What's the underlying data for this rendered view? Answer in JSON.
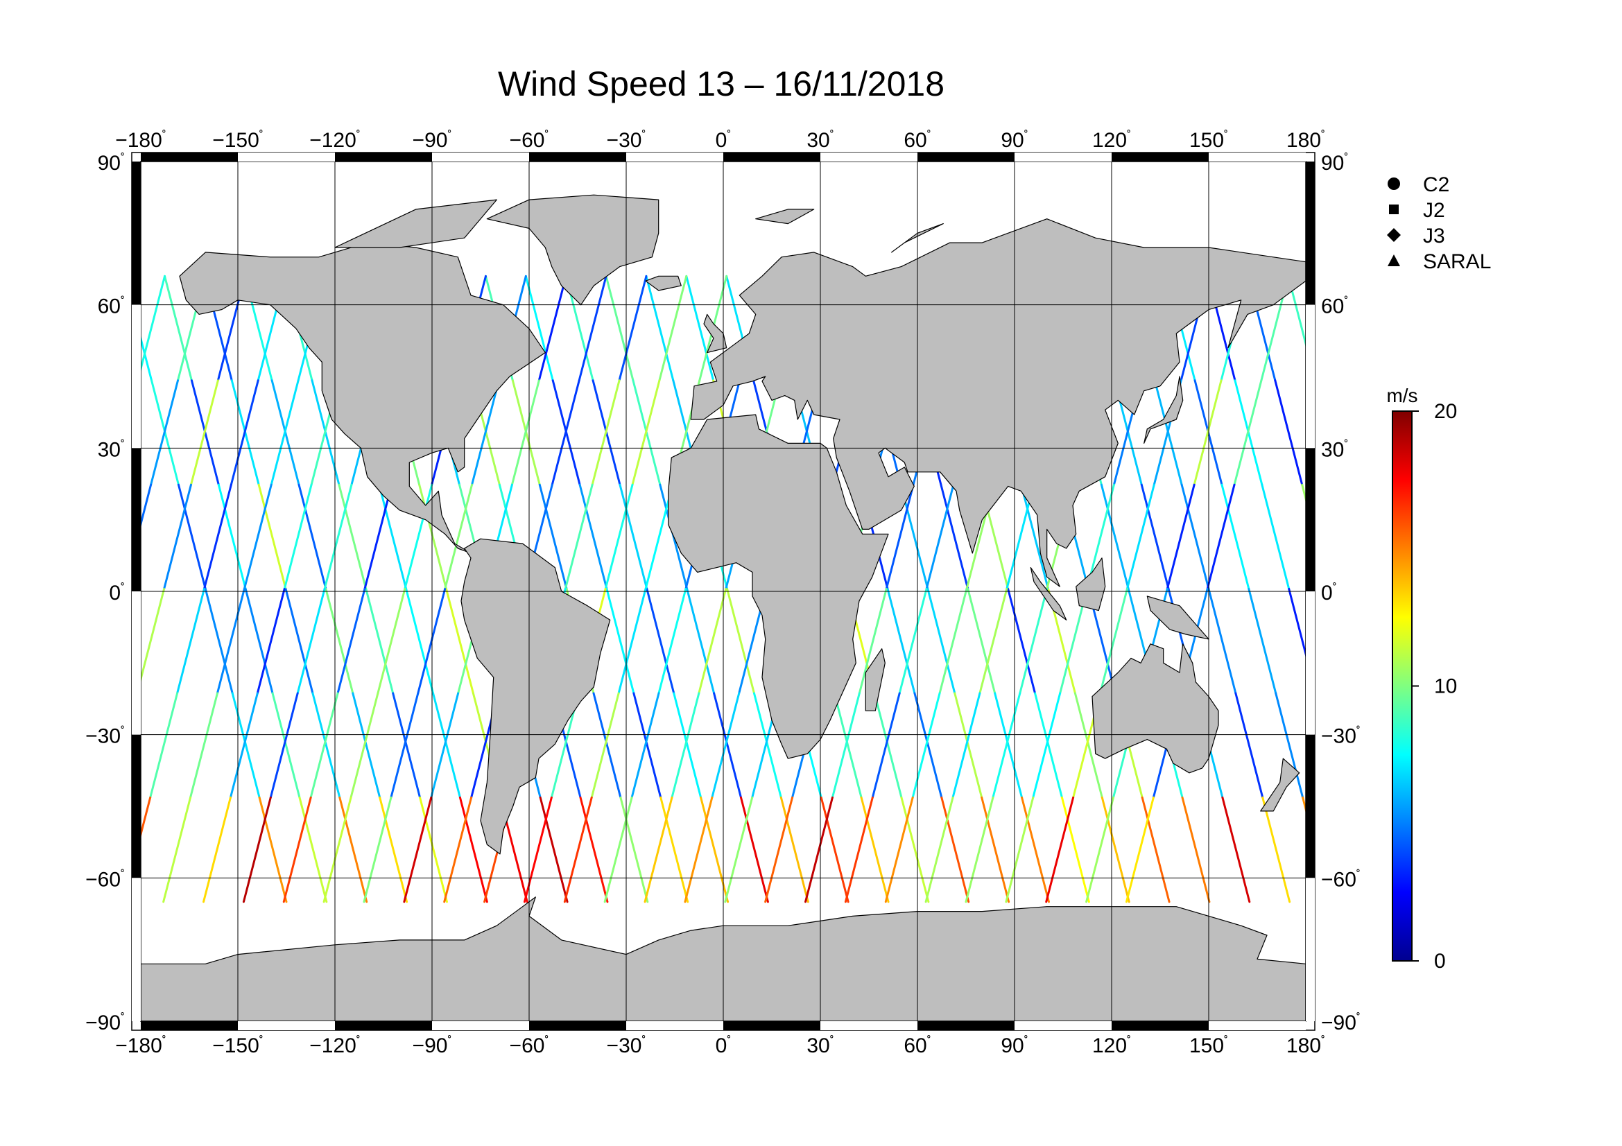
{
  "title": "Wind Speed 13 – 16/11/2018",
  "map": {
    "lon_ticks": [
      {
        "value": -180,
        "label": "−180"
      },
      {
        "value": -150,
        "label": "−150"
      },
      {
        "value": -120,
        "label": "−120"
      },
      {
        "value": -90,
        "label": "−90"
      },
      {
        "value": -60,
        "label": "−60"
      },
      {
        "value": -30,
        "label": "−30"
      },
      {
        "value": 0,
        "label": "0"
      },
      {
        "value": 30,
        "label": "30"
      },
      {
        "value": 60,
        "label": "60"
      },
      {
        "value": 90,
        "label": "90"
      },
      {
        "value": 120,
        "label": "120"
      },
      {
        "value": 150,
        "label": "150"
      },
      {
        "value": 180,
        "label": "180"
      }
    ],
    "lat_ticks": [
      {
        "value": 90,
        "label": "90"
      },
      {
        "value": 60,
        "label": "60"
      },
      {
        "value": 30,
        "label": "30"
      },
      {
        "value": 0,
        "label": "0"
      },
      {
        "value": -30,
        "label": "−30"
      },
      {
        "value": -60,
        "label": "−60"
      },
      {
        "value": -90,
        "label": "−90"
      }
    ],
    "degree_symbol": "˚",
    "land_color": "#bebebe",
    "ocean_color": "#ffffff",
    "track_coverage_lat": [
      -65,
      66
    ]
  },
  "legend": {
    "items": [
      {
        "label": "C2",
        "marker": "circle"
      },
      {
        "label": "J2",
        "marker": "square"
      },
      {
        "label": "J3",
        "marker": "diamond"
      },
      {
        "label": "SARAL",
        "marker": "triangle"
      }
    ]
  },
  "colorbar": {
    "unit": "m/s",
    "min": 0,
    "max": 20,
    "tick_labels": [
      {
        "value": 20,
        "label": "20"
      },
      {
        "value": 10,
        "label": "10"
      },
      {
        "value": 0,
        "label": "0"
      }
    ],
    "colors": [
      "#00008f",
      "#0000ff",
      "#0080ff",
      "#00ffff",
      "#80ff80",
      "#ffff00",
      "#ff8000",
      "#ff0000",
      "#800000"
    ]
  }
}
